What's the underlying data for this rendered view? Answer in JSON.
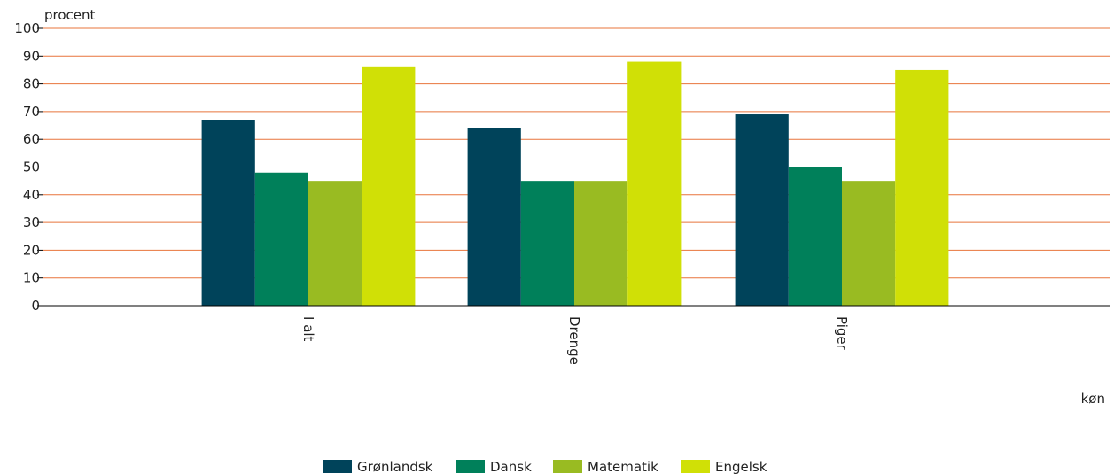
{
  "chart_data": {
    "type": "bar",
    "ylabel": "procent",
    "xlabel": "køn",
    "ylim": [
      0,
      100
    ],
    "yticks": [
      0,
      10,
      20,
      30,
      40,
      50,
      60,
      70,
      80,
      90,
      100
    ],
    "grid": true,
    "legend": "bottom",
    "categories": [
      "I alt",
      "Drenge",
      "Piger"
    ],
    "series": [
      {
        "name": "Grønlandsk",
        "color": "#00435a",
        "values": [
          67,
          64,
          69
        ]
      },
      {
        "name": "Dansk",
        "color": "#00805a",
        "values": [
          48,
          45,
          50
        ]
      },
      {
        "name": "Matematik",
        "color": "#99bb22",
        "values": [
          45,
          45,
          45
        ]
      },
      {
        "name": "Engelsk",
        "color": "#d0e006",
        "values": [
          86,
          88,
          85
        ]
      }
    ],
    "grid_color": "#e8743b",
    "axis_color": "#000000"
  }
}
